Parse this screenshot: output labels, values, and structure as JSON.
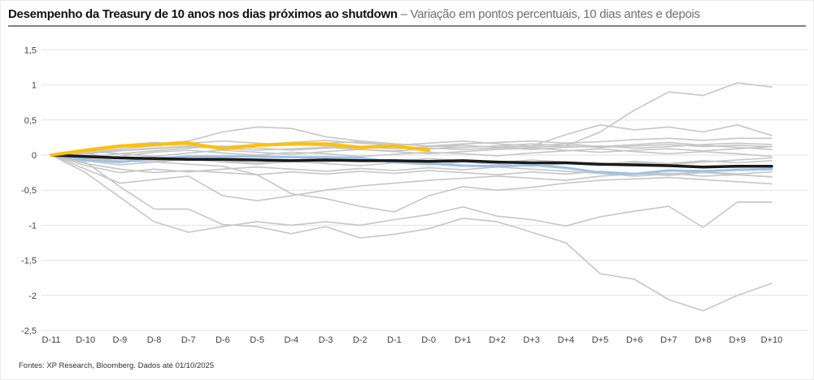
{
  "header": {
    "title_bold": "Desempenho da Treasury de 10 anos nos dias próximos ao shutdown",
    "title_rest": " – Variação em pontos percentuais, 10 dias antes e depois"
  },
  "footer": {
    "source": "Fontes: XP Research, Bloomberg. Dados até 01/10/2025"
  },
  "colors": {
    "gray": "#c6c6c6",
    "blue": "#9dc3e6",
    "black": "#1a1a1a",
    "yellow": "#ffc000",
    "gridline": "#e2e2e2",
    "axis_text": "#404040",
    "title_text": "#111111",
    "subtitle_text": "#6f6f6f",
    "rule": "#808080"
  },
  "chart_data": {
    "type": "line",
    "title": "Desempenho da Treasury de 10 anos nos dias próximos ao shutdown",
    "subtitle": "Variação em pontos percentuais, 10 dias antes e depois",
    "xlabel": "",
    "ylabel": "Variação em pontos percentuais",
    "grid": "horizontal",
    "legend": "none",
    "ylim": [
      -2.5,
      1.5
    ],
    "yticks": [
      1.5,
      1,
      0.5,
      0,
      -0.5,
      -1,
      -1.5,
      -2,
      -2.5
    ],
    "ytick_labels": [
      "1,5",
      "1",
      "0,5",
      "0",
      "-0,5",
      "-1",
      "-1,5",
      "-2",
      "-2,5"
    ],
    "categories": [
      "D-11",
      "D-10",
      "D-9",
      "D-8",
      "D-7",
      "D-6",
      "D-5",
      "D-4",
      "D-3",
      "D-2",
      "D-1",
      "D-0",
      "D+1",
      "D+2",
      "D+3",
      "D+4",
      "D+5",
      "D+6",
      "D+7",
      "D+8",
      "D+9",
      "D+10"
    ],
    "series": [
      {
        "name": "gray-line-1",
        "color": "gray",
        "values": [
          0,
          -0.1,
          -0.45,
          -0.77,
          -0.77,
          -0.99,
          -1.02,
          -1.12,
          -1.02,
          -1.18,
          -1.13,
          -1.05,
          -0.9,
          -0.95,
          -1.1,
          -1.25,
          -1.69,
          -1.77,
          -2.06,
          -2.22,
          -2.0,
          -1.83
        ]
      },
      {
        "name": "gray-line-2",
        "color": "gray",
        "values": [
          0,
          -0.04,
          -0.08,
          -0.1,
          -0.13,
          -0.16,
          -0.28,
          -0.55,
          -0.62,
          -0.73,
          -0.81,
          -0.58,
          -0.45,
          -0.5,
          -0.46,
          -0.4,
          -0.36,
          -0.34,
          -0.32,
          -0.35,
          -0.38,
          -0.41
        ]
      },
      {
        "name": "gray-line-3",
        "color": "gray",
        "values": [
          0,
          -0.25,
          -0.6,
          -0.95,
          -1.1,
          -1.02,
          -0.95,
          -1.0,
          -0.95,
          -1.0,
          -0.92,
          -0.85,
          -0.74,
          -0.87,
          -0.92,
          -1.01,
          -0.88,
          -0.8,
          -0.73,
          -1.03,
          -0.67,
          -0.67
        ]
      },
      {
        "name": "gray-line-4",
        "color": "gray",
        "values": [
          0,
          -0.2,
          -0.4,
          -0.35,
          -0.3,
          -0.58,
          -0.65,
          -0.58,
          -0.5,
          -0.44,
          -0.4,
          -0.36,
          -0.33,
          -0.3,
          -0.33,
          -0.36,
          -0.3,
          -0.27,
          -0.26,
          -0.3,
          -0.28,
          -0.31
        ]
      },
      {
        "name": "gray-line-5",
        "color": "gray",
        "values": [
          0,
          0.02,
          0.06,
          0.09,
          0.12,
          0.1,
          0.07,
          0.09,
          0.11,
          0.08,
          0.06,
          0.09,
          0.11,
          0.13,
          0.11,
          0.13,
          0.33,
          0.64,
          0.9,
          0.85,
          1.03,
          0.97
        ]
      },
      {
        "name": "gray-line-6",
        "color": "gray",
        "values": [
          0,
          0.05,
          0.12,
          0.16,
          0.2,
          0.33,
          0.4,
          0.38,
          0.26,
          0.2,
          0.16,
          0.13,
          0.11,
          0.13,
          0.16,
          0.13,
          0.11,
          0.13,
          0.15,
          0.12,
          0.14,
          0.12
        ]
      },
      {
        "name": "gray-line-7",
        "color": "gray",
        "values": [
          0,
          0.03,
          0.07,
          0.1,
          0.13,
          0.11,
          0.13,
          0.16,
          0.13,
          0.1,
          0.12,
          0.1,
          0.08,
          0.1,
          0.13,
          0.29,
          0.43,
          0.36,
          0.4,
          0.33,
          0.43,
          0.28
        ]
      },
      {
        "name": "gray-line-8",
        "color": "gray",
        "values": [
          0,
          0.04,
          0.09,
          0.13,
          0.17,
          0.2,
          0.17,
          0.14,
          0.17,
          0.19,
          0.16,
          0.13,
          0.16,
          0.18,
          0.2,
          0.17,
          0.19,
          0.22,
          0.24,
          0.21,
          0.24,
          0.24
        ]
      },
      {
        "name": "gray-line-9",
        "color": "gray",
        "values": [
          0,
          -0.03,
          0.02,
          0.06,
          0.1,
          0.13,
          0.1,
          0.07,
          0.1,
          0.12,
          0.09,
          0.12,
          0.14,
          0.11,
          0.08,
          0.11,
          0.13,
          0.1,
          0.12,
          0.15,
          0.17,
          0.15
        ]
      },
      {
        "name": "gray-line-10",
        "color": "gray",
        "values": [
          0,
          0.06,
          0.02,
          -0.02,
          0.03,
          0.07,
          0.04,
          0.01,
          0.05,
          0.08,
          0.05,
          0.02,
          0.05,
          0.08,
          0.1,
          0.07,
          0.04,
          0.07,
          0.09,
          0.06,
          0.09,
          0.12
        ]
      },
      {
        "name": "gray-line-11",
        "color": "gray",
        "values": [
          0,
          -0.08,
          -0.14,
          -0.1,
          -0.06,
          -0.1,
          -0.13,
          -0.09,
          -0.12,
          -0.15,
          -0.11,
          -0.14,
          -0.1,
          -0.13,
          -0.16,
          -0.12,
          -0.15,
          -0.11,
          -0.14,
          -0.1,
          -0.07,
          -0.04
        ]
      },
      {
        "name": "gray-line-12",
        "color": "gray",
        "values": [
          0,
          -0.12,
          -0.2,
          -0.25,
          -0.22,
          -0.25,
          -0.28,
          -0.24,
          -0.27,
          -0.23,
          -0.26,
          -0.22,
          -0.25,
          -0.28,
          -0.24,
          -0.27,
          -0.23,
          -0.26,
          -0.29,
          -0.25,
          -0.28,
          -0.31
        ]
      },
      {
        "name": "gray-line-13",
        "color": "gray",
        "values": [
          0,
          -0.15,
          -0.25,
          -0.2,
          -0.24,
          -0.2,
          -0.17,
          -0.2,
          -0.23,
          -0.19,
          -0.22,
          -0.18,
          -0.21,
          -0.17,
          -0.2,
          -0.23,
          -0.26,
          -0.3,
          -0.27,
          -0.24,
          -0.27,
          -0.24
        ]
      },
      {
        "name": "gray-line-14",
        "color": "gray",
        "values": [
          0,
          0.02,
          -0.04,
          -0.08,
          -0.05,
          -0.08,
          -0.11,
          -0.07,
          -0.1,
          -0.06,
          -0.09,
          -0.05,
          -0.08,
          -0.11,
          -0.07,
          -0.1,
          -0.13,
          -0.09,
          -0.12,
          -0.08,
          -0.11,
          -0.08
        ]
      },
      {
        "name": "gray-line-15",
        "color": "gray",
        "values": [
          0,
          0.08,
          0.14,
          0.18,
          0.15,
          0.12,
          0.15,
          0.18,
          0.21,
          0.17,
          0.14,
          0.17,
          0.2,
          0.16,
          0.13,
          0.16,
          0.12,
          0.15,
          0.18,
          0.14,
          0.11,
          0.08
        ]
      },
      {
        "name": "gray-line-16",
        "color": "gray",
        "values": [
          0,
          -0.05,
          -0.02,
          0.04,
          0.07,
          0.03,
          0.0,
          0.04,
          0.02,
          -0.02,
          0.01,
          0.04,
          0.02,
          -0.01,
          0.03,
          0.06,
          0.09,
          0.05,
          0.02,
          0.05,
          0.02,
          -0.02
        ]
      },
      {
        "name": "blue-highlight-line",
        "color": "blue",
        "values": [
          0,
          -0.07,
          -0.1,
          -0.05,
          -0.02,
          -0.02,
          -0.02,
          -0.03,
          -0.03,
          -0.04,
          -0.1,
          -0.12,
          -0.15,
          -0.16,
          -0.14,
          -0.18,
          -0.25,
          -0.27,
          -0.22,
          -0.23,
          -0.21,
          -0.2
        ]
      },
      {
        "name": "black-median-line",
        "color": "black",
        "values": [
          0,
          -0.02,
          -0.04,
          -0.05,
          -0.06,
          -0.06,
          -0.07,
          -0.08,
          -0.07,
          -0.08,
          -0.08,
          -0.09,
          -0.08,
          -0.1,
          -0.11,
          -0.11,
          -0.13,
          -0.14,
          -0.15,
          -0.17,
          -0.16,
          -0.16
        ]
      },
      {
        "name": "yellow-current-line",
        "color": "yellow",
        "values": [
          0,
          0.07,
          0.13,
          0.15,
          0.17,
          0.09,
          0.14,
          0.16,
          0.16,
          0.11,
          0.13,
          0.07,
          null,
          null,
          null,
          null,
          null,
          null,
          null,
          null,
          null,
          null
        ]
      }
    ]
  }
}
